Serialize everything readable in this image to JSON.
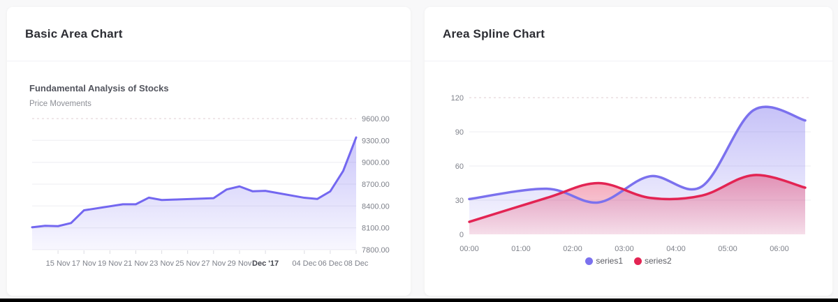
{
  "left_card": {
    "title": "Basic Area Chart"
  },
  "right_card": {
    "title": "Area Spline Chart"
  },
  "chart_data": [
    {
      "type": "area",
      "title": "Fundamental Analysis of Stocks",
      "subtitle": "Price Movements",
      "line_color": "#7367f0",
      "x": [
        "2017-11-13",
        "2017-11-14",
        "2017-11-15",
        "2017-11-16",
        "2017-11-17",
        "2017-11-20",
        "2017-11-21",
        "2017-11-22",
        "2017-11-23",
        "2017-11-24",
        "2017-11-27",
        "2017-11-28",
        "2017-11-29",
        "2017-11-30",
        "2017-12-01",
        "2017-12-04",
        "2017-12-05",
        "2017-12-06",
        "2017-12-07",
        "2017-12-08"
      ],
      "values": [
        8107.85,
        8128.0,
        8122.9,
        8165.5,
        8340.7,
        8423.7,
        8423.5,
        8514.3,
        8481.85,
        8487.7,
        8506.9,
        8626.2,
        8668.95,
        8602.3,
        8607.55,
        8512.9,
        8496.25,
        8600.65,
        8881.1,
        9340.85
      ],
      "xticks": [
        {
          "label": "15 Nov",
          "date": "2017-11-15",
          "bold": false
        },
        {
          "label": "17 Nov",
          "date": "2017-11-17",
          "bold": false
        },
        {
          "label": "19 Nov",
          "date": "2017-11-19",
          "bold": false
        },
        {
          "label": "21 Nov",
          "date": "2017-11-21",
          "bold": false
        },
        {
          "label": "23 Nov",
          "date": "2017-11-23",
          "bold": false
        },
        {
          "label": "25 Nov",
          "date": "2017-11-25",
          "bold": false
        },
        {
          "label": "27 Nov",
          "date": "2017-11-27",
          "bold": false
        },
        {
          "label": "29 Nov",
          "date": "2017-11-29",
          "bold": false
        },
        {
          "label": "Dec '17",
          "date": "2017-12-01",
          "bold": true
        },
        {
          "label": "04 Dec",
          "date": "2017-12-04",
          "bold": false
        },
        {
          "label": "06 Dec",
          "date": "2017-12-06",
          "bold": false
        },
        {
          "label": "08 Dec",
          "date": "2017-12-08",
          "bold": false
        }
      ],
      "ytick_labels": [
        "7800.00",
        "8100.00",
        "8400.00",
        "8700.00",
        "9000.00",
        "9300.00",
        "9600.00"
      ],
      "ylim": [
        7800,
        9600
      ],
      "yaxis_position": "right",
      "grid": true,
      "legend_position": "none"
    },
    {
      "type": "area",
      "curve": "spline",
      "x_hours": [
        0,
        1.5,
        2.5,
        3.5,
        4.5,
        5.5,
        6.5
      ],
      "series": [
        {
          "name": "series1",
          "color": "#7b71ee",
          "values": [
            31,
            40,
            28,
            51,
            42,
            109,
            100
          ]
        },
        {
          "name": "series2",
          "color": "#e32453",
          "values": [
            11,
            32,
            45,
            32,
            34,
            52,
            41
          ]
        }
      ],
      "xtick_labels": [
        "00:00",
        "01:00",
        "02:00",
        "03:00",
        "04:00",
        "05:00",
        "06:00"
      ],
      "yticks": [
        0,
        30,
        60,
        90,
        120
      ],
      "ylim": [
        0,
        120
      ],
      "yaxis_position": "left",
      "grid": true,
      "legend_position": "bottom"
    }
  ]
}
